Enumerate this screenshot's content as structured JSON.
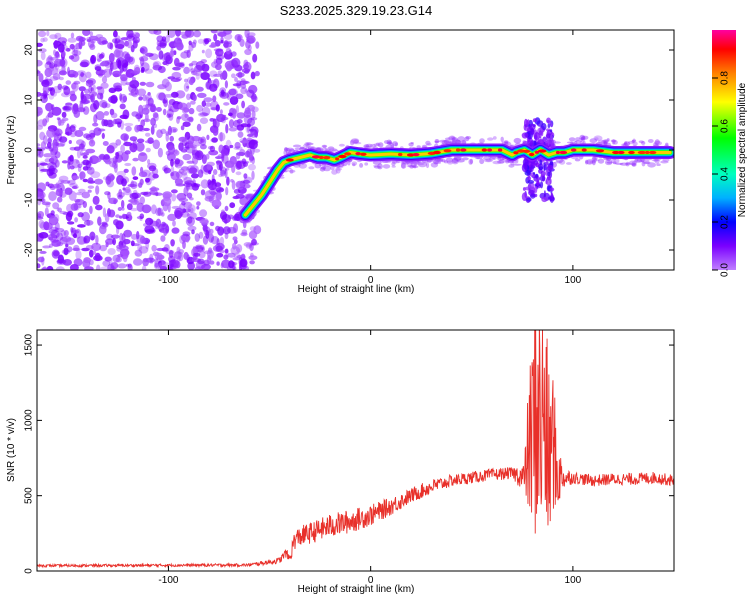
{
  "title": "S233.2025.329.19.23.G14",
  "chart_data": [
    {
      "type": "heatmap",
      "xlabel": "Height of straight line (km)",
      "ylabel": "Frequency (Hz)",
      "xlim": [
        -165,
        150
      ],
      "ylim": [
        -24,
        24
      ],
      "x_ticks": [
        -100,
        0,
        100
      ],
      "y_ticks": [
        -20,
        -10,
        0,
        10,
        20
      ],
      "colorbar": {
        "label": "Normalized spectral amplitude",
        "range": [
          0.0,
          1.0
        ],
        "ticks": [
          "0.0",
          "0.2",
          "0.4",
          "0.6",
          "0.8"
        ],
        "tick_values": [
          0.0,
          0.2,
          0.4,
          0.6,
          0.8
        ]
      },
      "noise_region_x": [
        -165,
        -56
      ],
      "ridge": {
        "x": [
          -62,
          -58,
          -54,
          -50,
          -46,
          -43,
          -40,
          -35,
          -30,
          -26,
          -22,
          -18,
          -15,
          -10,
          -5,
          0,
          10,
          20,
          30,
          40,
          50,
          60,
          65,
          70,
          72,
          76,
          80,
          84,
          88,
          92,
          96,
          100,
          110,
          120,
          130,
          140,
          148
        ],
        "y": [
          -13,
          -11,
          -9,
          -6.5,
          -4,
          -2.5,
          -2,
          -1.5,
          -1,
          -1.5,
          -1.5,
          -2,
          -1.5,
          -0.5,
          -0.8,
          -1,
          -0.8,
          -1,
          -0.7,
          0,
          0,
          0,
          0,
          -1,
          -0.5,
          0,
          -1,
          0,
          -1,
          -0.5,
          -0.5,
          0,
          0,
          -0.5,
          -0.5,
          -0.5,
          -0.5
        ]
      },
      "scatter_band_x": [
        76,
        90
      ],
      "scatter_band_y": [
        -10,
        6
      ]
    },
    {
      "type": "line",
      "xlabel": "Height of straight line (km)",
      "ylabel": "SNR (10 * v/v)",
      "xlim": [
        -165,
        150
      ],
      "ylim": [
        0,
        1600
      ],
      "x_ticks": [
        -100,
        0,
        100
      ],
      "y_ticks": [
        0,
        500,
        1000,
        1500
      ],
      "color": "#e8302a",
      "envelope": {
        "x": [
          -165,
          -60,
          -45,
          -42,
          -40,
          -38,
          -35,
          -30,
          -20,
          -10,
          0,
          10,
          20,
          30,
          40,
          50,
          60,
          70,
          76,
          78,
          80,
          82,
          84,
          86,
          88,
          90,
          92,
          95,
          100,
          110,
          120,
          130,
          140,
          150
        ],
        "mean": [
          35,
          40,
          70,
          120,
          80,
          200,
          230,
          250,
          300,
          330,
          370,
          430,
          500,
          560,
          600,
          620,
          640,
          650,
          620,
          800,
          900,
          1100,
          950,
          1050,
          700,
          900,
          650,
          620,
          620,
          600,
          610,
          610,
          620,
          600
        ],
        "amplitude": [
          8,
          10,
          20,
          30,
          40,
          60,
          70,
          70,
          80,
          80,
          70,
          60,
          50,
          50,
          40,
          40,
          40,
          40,
          100,
          450,
          700,
          900,
          850,
          800,
          650,
          500,
          300,
          80,
          40,
          40,
          40,
          40,
          40,
          40
        ]
      }
    }
  ]
}
